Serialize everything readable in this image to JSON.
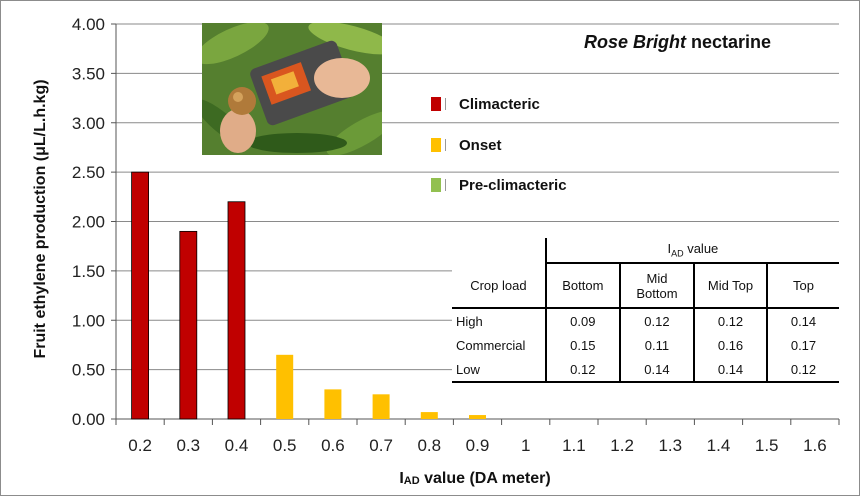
{
  "chart_data": {
    "type": "bar",
    "title_italic": "Rose Bright",
    "title_rest": " nectarine",
    "xlabel_main": "I",
    "xlabel_sub": "AD",
    "xlabel_rest": " value (DA meter)",
    "ylabel": "Fruit ethylene production (μL/L.h.kg)",
    "ylim": [
      0,
      4
    ],
    "y_ticks": [
      "0.00",
      "0.50",
      "1.00",
      "1.50",
      "2.00",
      "2.50",
      "3.00",
      "3.50",
      "4.00"
    ],
    "categories": [
      "0.2",
      "0.3",
      "0.4",
      "0.5",
      "0.6",
      "0.7",
      "0.8",
      "0.9",
      "1",
      "1.1",
      "1.2",
      "1.3",
      "1.4",
      "1.5",
      "1.6"
    ],
    "series": [
      {
        "name": "Climacteric",
        "color": "#c00000",
        "values": [
          2.5,
          1.9,
          2.2,
          0,
          0,
          0,
          0,
          0,
          0,
          0,
          0,
          0,
          0,
          0,
          0
        ]
      },
      {
        "name": "Onset",
        "color": "#ffc000",
        "values": [
          0,
          0,
          0,
          0.65,
          0.3,
          0.25,
          0.07,
          0.04,
          0,
          0,
          0,
          0,
          0,
          0,
          0
        ]
      },
      {
        "name": "Pre-climacteric",
        "color": "#92c050",
        "values": [
          0,
          0,
          0,
          0,
          0,
          0,
          0,
          0,
          0,
          0,
          0,
          0,
          0,
          0,
          0
        ]
      }
    ],
    "grid": true,
    "legend_position": "top-center",
    "inset_table": {
      "group_header_main": "I",
      "group_header_sub": "AD",
      "group_header_rest": " value",
      "row_header": "Crop load",
      "columns": [
        "Bottom",
        "Mid Bottom",
        "Mid Top",
        "Top"
      ],
      "rows": [
        {
          "label": "High",
          "values": [
            "0.09",
            "0.12",
            "0.12",
            "0.14"
          ]
        },
        {
          "label": "Commercial",
          "values": [
            "0.15",
            "0.11",
            "0.16",
            "0.17"
          ]
        },
        {
          "label": "Low",
          "values": [
            "0.12",
            "0.14",
            "0.14",
            "0.12"
          ]
        }
      ]
    }
  },
  "photo": {
    "icon": "da-meter-photo-icon"
  }
}
